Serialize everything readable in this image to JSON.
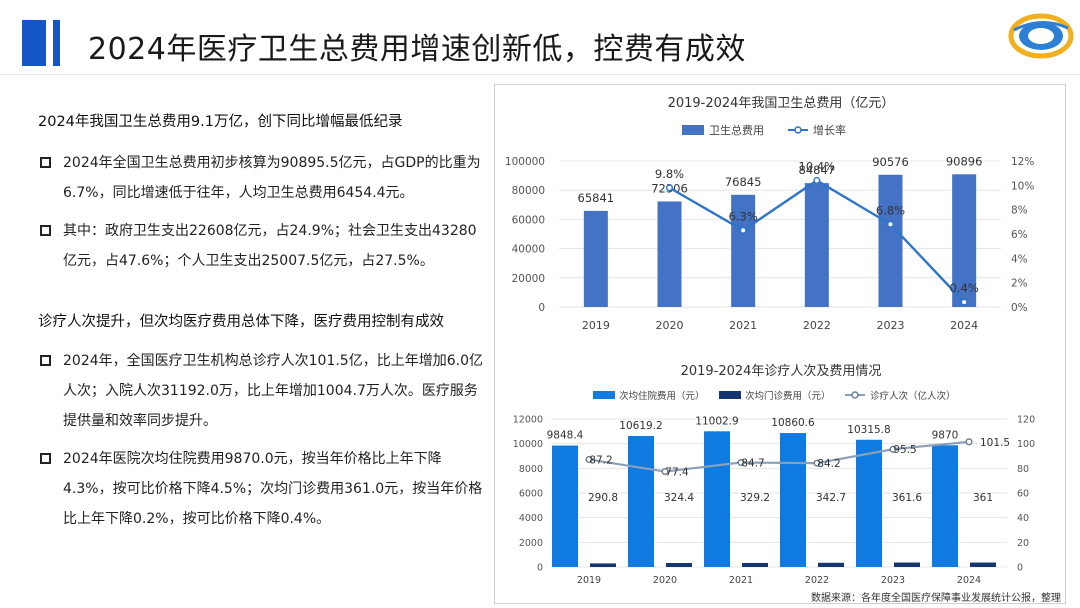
{
  "title": "2024年医疗卫生总费用增速创新低，控费有成效",
  "left": {
    "section1_heading": "2024年我国卫生总费用9.1万亿，创下同比增幅最低纪录",
    "section1_bullets": [
      "2024年全国卫生总费用初步核算为90895.5亿元，占GDP的比重为6.7%，同比增速低于往年，人均卫生总费用6454.4元。",
      "其中：政府卫生支出22608亿元，占24.9%；社会卫生支出43280亿元，占47.6%；个人卫生支出25007.5亿元，占27.5%。"
    ],
    "section2_heading": "诊疗人次提升，但次均医疗费用总体下降，医疗费用控制有成效",
    "section2_bullets": [
      "2024年，全国医疗卫生机构总诊疗人次101.5亿，比上年增加6.0亿人次；入院人次31192.0万，比上年增加1004.7万人次。医疗服务提供量和效率同步提升。",
      "2024年医院次均住院费用9870.0元，按当年价格比上年下降4.3%，按可比价格下降4.5%；次均门诊费用361.0元，按当年价格比上年下降0.2%，按可比价格下降0.4%。"
    ]
  },
  "colors": {
    "title_mark": "#1456c8",
    "chart1_bar": "#4472c4",
    "chart1_line": "#2e75c9",
    "chart2_bar1": "#0f7be0",
    "chart2_bar2": "#15356e",
    "chart2_line": "#8aa0b8"
  },
  "source": "数据来源：各年度全国医疗保障事业发展统计公报，整理",
  "chart_data": [
    {
      "type": "bar",
      "title": "2019-2024年我国卫生总费用（亿元）",
      "categories": [
        "2019",
        "2020",
        "2021",
        "2022",
        "2023",
        "2024"
      ],
      "series": [
        {
          "name": "卫生总费用",
          "type": "bar",
          "axis": "left",
          "values": [
            65841,
            72306,
            76845,
            84847,
            90576,
            90896
          ],
          "labels": [
            "65841",
            "72306",
            "76845",
            "84847",
            "90576",
            "90896"
          ]
        },
        {
          "name": "增长率",
          "type": "line",
          "axis": "right",
          "values": [
            null,
            9.8,
            6.3,
            10.4,
            6.8,
            0.4
          ],
          "labels": [
            "",
            "9.8%",
            "6.3%",
            "10.4%",
            "6.8%",
            "0.4%"
          ]
        }
      ],
      "y_left": {
        "min": 0,
        "max": 100000,
        "step": 20000,
        "ticks": [
          "0",
          "20000",
          "40000",
          "60000",
          "80000",
          "100000"
        ]
      },
      "y_right": {
        "min": 0,
        "max": 12,
        "step": 2,
        "ticks": [
          "0%",
          "2%",
          "4%",
          "6%",
          "8%",
          "10%",
          "12%"
        ]
      },
      "legend": "top-center",
      "grid": true
    },
    {
      "type": "bar",
      "title": "2019-2024年诊疗人次及费用情况",
      "categories": [
        "2019",
        "2020",
        "2021",
        "2022",
        "2023",
        "2024"
      ],
      "series": [
        {
          "name": "次均住院费用（元）",
          "type": "bar",
          "axis": "left",
          "values": [
            9848.4,
            10619.2,
            11002.9,
            10860.6,
            10315.8,
            9870
          ],
          "labels": [
            "9848.4",
            "10619.2",
            "11002.9",
            "10860.6",
            "10315.8",
            "9870"
          ]
        },
        {
          "name": "次均门诊费用（元）",
          "type": "bar",
          "axis": "left",
          "values": [
            290.8,
            324.4,
            329.2,
            342.7,
            361.6,
            361
          ],
          "labels": [
            "290.8",
            "324.4",
            "329.2",
            "342.7",
            "361.6",
            "361"
          ]
        },
        {
          "name": "诊疗人次（亿人次）",
          "type": "line",
          "axis": "right",
          "values": [
            87.2,
            77.4,
            84.7,
            84.2,
            95.5,
            101.5
          ],
          "labels": [
            "87.2",
            "77.4",
            "84.7",
            "84.2",
            "95.5",
            "101.5"
          ]
        }
      ],
      "y_left": {
        "min": 0,
        "max": 12000,
        "step": 2000,
        "ticks": [
          "0",
          "2000",
          "4000",
          "6000",
          "8000",
          "10000",
          "12000"
        ]
      },
      "y_right": {
        "min": 0,
        "max": 120,
        "step": 20,
        "ticks": [
          "0",
          "20",
          "40",
          "60",
          "80",
          "100",
          "120"
        ]
      },
      "legend": "top-center",
      "grid": true
    }
  ]
}
